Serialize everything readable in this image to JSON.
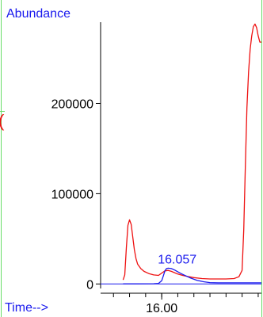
{
  "chart_data": {
    "type": "line",
    "ylabel": "Abundance",
    "xlabel": "Time-->",
    "xlim": [
      15.62,
      16.62
    ],
    "ylim": [
      -5000,
      290000
    ],
    "x_ticks": [
      16.0
    ],
    "x_tick_labels": [
      "16.00"
    ],
    "y_ticks": [
      0,
      100000,
      200000
    ],
    "y_tick_labels": [
      "0",
      "100000",
      "200000"
    ],
    "peak_label": "16.057",
    "side_mark": "(",
    "grid": false,
    "colors": {
      "axis": "#000000",
      "frame": "#66dd66",
      "label": "#1a1aee",
      "red": "#ee1111",
      "blue": "#1a1aee"
    },
    "series": [
      {
        "color": "#ee1111",
        "x": [
          15.76,
          15.77,
          15.78,
          15.79,
          15.8,
          15.81,
          15.82,
          15.83,
          15.84,
          15.85,
          15.87,
          15.89,
          15.92,
          15.95,
          15.98,
          16.0,
          16.02,
          16.04,
          16.06,
          16.08,
          16.1,
          16.13,
          16.17,
          16.2,
          16.25,
          16.3,
          16.35,
          16.4,
          16.45,
          16.48,
          16.5,
          16.51,
          16.52,
          16.53,
          16.54,
          16.55,
          16.56,
          16.57,
          16.58,
          16.59,
          16.6,
          16.61,
          16.62
        ],
        "y": [
          4500,
          10000,
          40000,
          65000,
          71000,
          66000,
          52000,
          38000,
          28000,
          22000,
          17000,
          14000,
          11500,
          10000,
          9500,
          12000,
          14500,
          15000,
          14000,
          12500,
          11000,
          9500,
          8000,
          7000,
          6000,
          5500,
          5500,
          5500,
          6000,
          8000,
          15000,
          60000,
          130000,
          195000,
          235000,
          260000,
          275000,
          285000,
          288000,
          284000,
          275000,
          268000,
          268000
        ]
      },
      {
        "color": "#1a1aee",
        "x": [
          15.76,
          15.85,
          15.95,
          15.98,
          16.0,
          16.01,
          16.02,
          16.03,
          16.04,
          16.06,
          16.08,
          16.1,
          16.12,
          16.15,
          16.18,
          16.22,
          16.26,
          16.3,
          16.35,
          16.4,
          16.5,
          16.62
        ],
        "y": [
          200,
          200,
          300,
          600,
          3500,
          9000,
          14500,
          17000,
          17500,
          17000,
          15500,
          13500,
          11500,
          9000,
          6500,
          4000,
          2500,
          1500,
          1200,
          1200,
          1200,
          1200
        ]
      }
    ]
  }
}
